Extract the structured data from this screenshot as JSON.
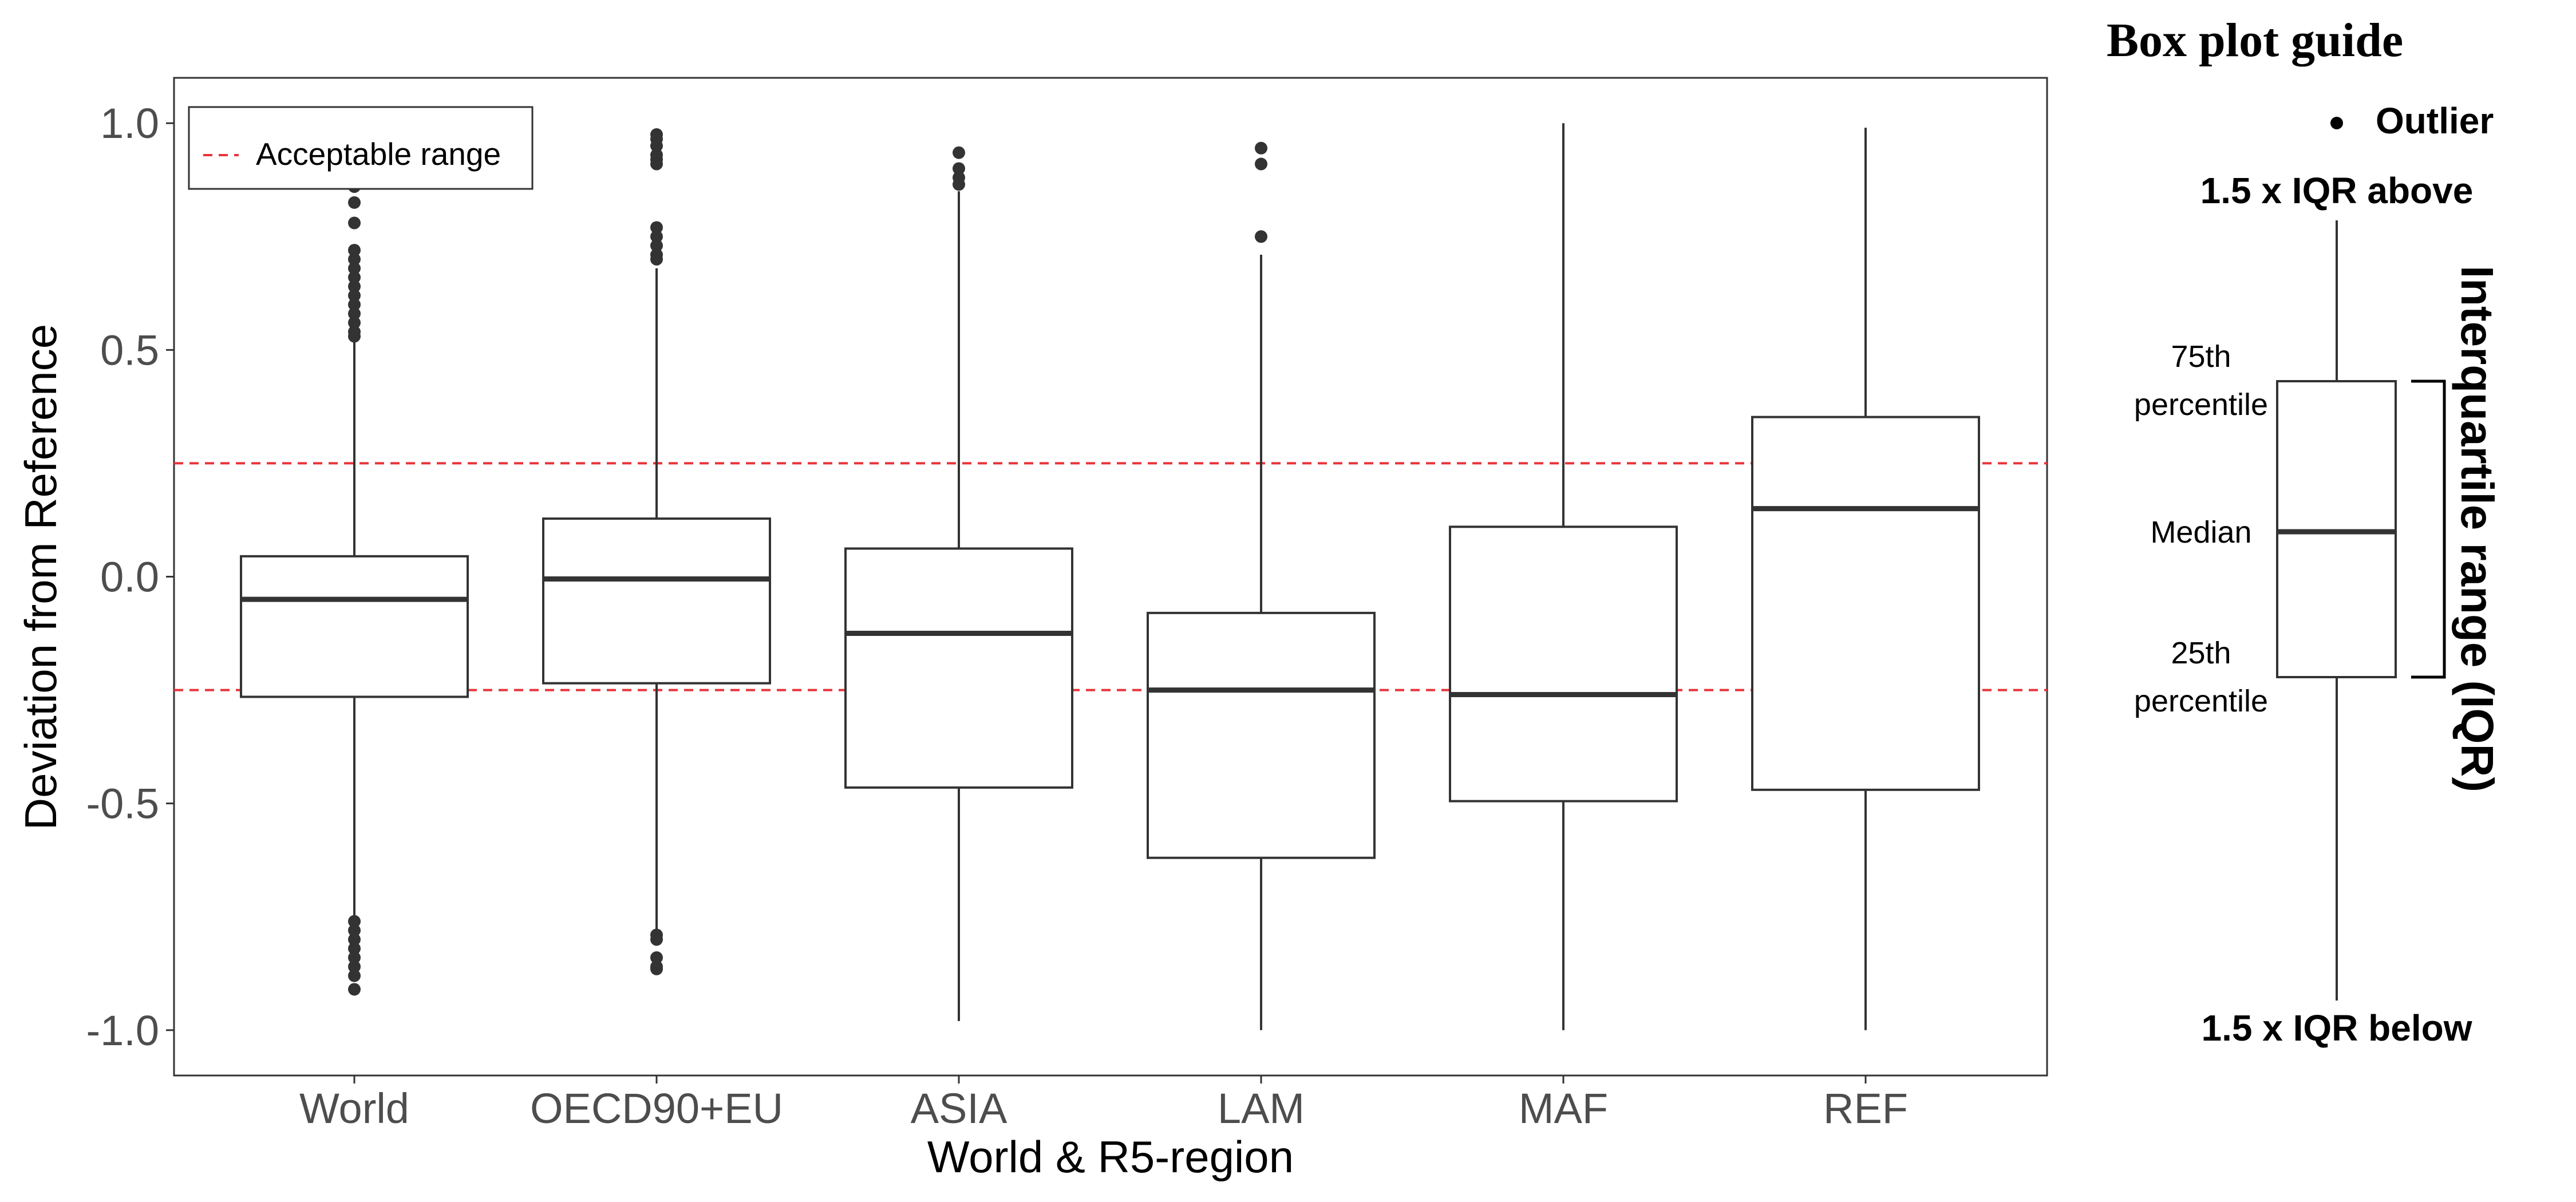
{
  "chart_data": {
    "type": "box",
    "xlabel": "World & R5-region",
    "ylabel": "Deviation from Reference",
    "ylim": [
      -1.1,
      1.1
    ],
    "yticks": [
      1.0,
      0.5,
      0.0,
      -0.5,
      -1.0
    ],
    "ytick_labels": [
      "1.0",
      "0.5",
      "0.0",
      "-0.5",
      "-1.0"
    ],
    "grid": false,
    "legend": {
      "position": "top-left",
      "label": "Acceptable range"
    },
    "reference_lines": [
      0.25,
      -0.25
    ],
    "reference_color": "#e8333a",
    "box_color": "#333333",
    "categories": [
      "World",
      "OECD90+EU",
      "ASIA",
      "LAM",
      "MAF",
      "REF"
    ],
    "boxes": [
      {
        "name": "World",
        "whisker_low": -0.75,
        "q1": -0.265,
        "median": -0.05,
        "q3": 0.045,
        "whisker_high": 0.52,
        "outliers": [
          0.86,
          0.825,
          0.78,
          0.72,
          0.7,
          0.68,
          0.66,
          0.64,
          0.62,
          0.6,
          0.58,
          0.56,
          0.54,
          0.53,
          -0.76,
          -0.78,
          -0.8,
          -0.82,
          -0.84,
          -0.86,
          -0.88,
          -0.91
        ]
      },
      {
        "name": "OECD90+EU",
        "whisker_low": -0.78,
        "q1": -0.235,
        "median": -0.005,
        "q3": 0.128,
        "whisker_high": 0.68,
        "outliers": [
          0.975,
          0.965,
          0.95,
          0.93,
          0.92,
          0.91,
          0.77,
          0.75,
          0.73,
          0.71,
          0.7,
          -0.79,
          -0.8,
          -0.84,
          -0.86,
          -0.865
        ]
      },
      {
        "name": "ASIA",
        "whisker_low": -0.98,
        "q1": -0.465,
        "median": -0.125,
        "q3": 0.062,
        "whisker_high": 0.85,
        "outliers": [
          0.935,
          0.9,
          0.88,
          0.865
        ]
      },
      {
        "name": "LAM",
        "whisker_low": -1.0,
        "q1": -0.62,
        "median": -0.25,
        "q3": -0.08,
        "whisker_high": 0.71,
        "outliers": [
          0.945,
          0.91,
          0.75
        ]
      },
      {
        "name": "MAF",
        "whisker_low": -1.0,
        "q1": -0.495,
        "median": -0.26,
        "q3": 0.11,
        "whisker_high": 1.0,
        "outliers": []
      },
      {
        "name": "REF",
        "whisker_low": -1.0,
        "q1": -0.47,
        "median": 0.15,
        "q3": 0.352,
        "whisker_high": 0.99,
        "outliers": []
      }
    ]
  },
  "guide": {
    "title": "Box plot guide",
    "outlier": "Outlier",
    "upper": "1.5 x IQR above",
    "q3_line1": "75th",
    "q3_line2": "percentile",
    "median": "Median",
    "q1_line1": "25th",
    "q1_line2": "percentile",
    "lower": "1.5 x IQR below",
    "iqr": "Interquartile range (IQR)"
  }
}
